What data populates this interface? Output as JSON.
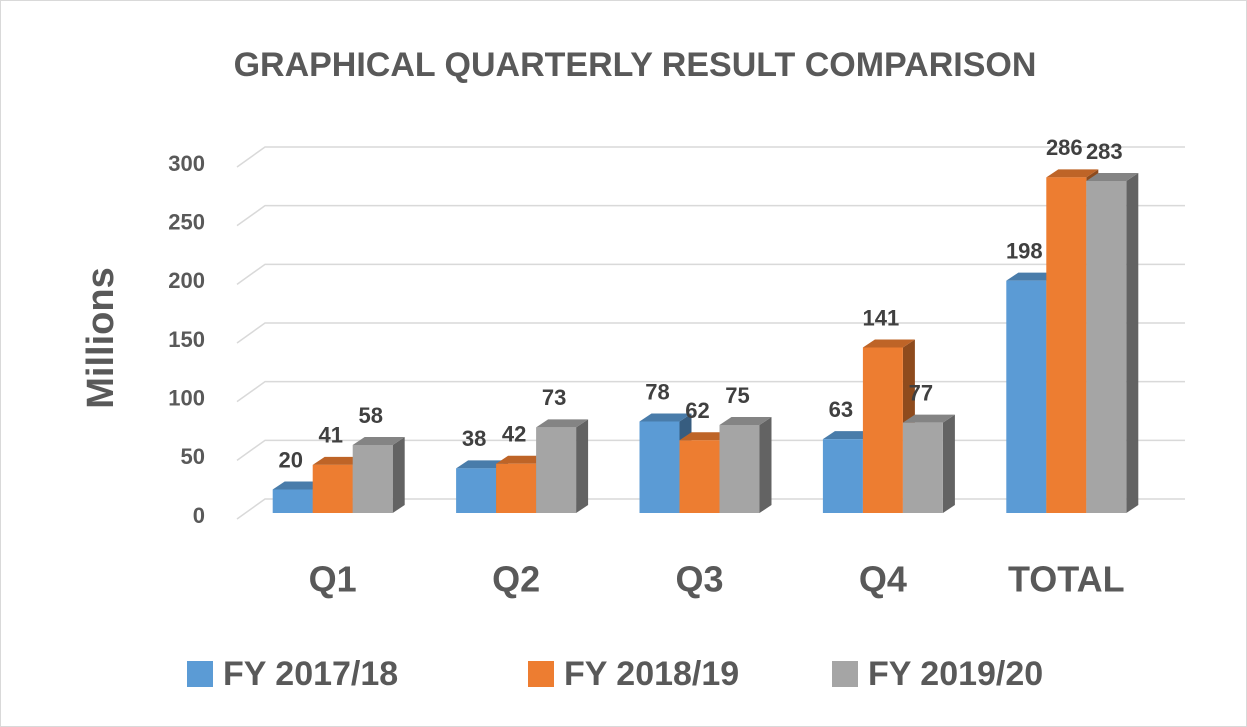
{
  "chart_data": {
    "type": "bar3d",
    "title": "GRAPHICAL QUARTERLY RESULT COMPARISON",
    "y_label": "Millions",
    "categories": [
      "Q1",
      "Q2",
      "Q3",
      "Q4",
      "TOTAL"
    ],
    "series": [
      {
        "name": "FY 2017/18",
        "color": "#5b9bd5",
        "values": [
          20,
          38,
          78,
          63,
          198
        ]
      },
      {
        "name": "FY 2018/19",
        "color": "#ed7d31",
        "values": [
          41,
          42,
          62,
          141,
          286
        ]
      },
      {
        "name": "FY 2019/20",
        "color": "#a5a5a5",
        "values": [
          58,
          73,
          75,
          77,
          283
        ]
      }
    ],
    "ylim": [
      0,
      300
    ],
    "yticks": [
      0,
      50,
      100,
      150,
      200,
      250,
      300
    ],
    "grid": true,
    "legend": "bottom"
  }
}
